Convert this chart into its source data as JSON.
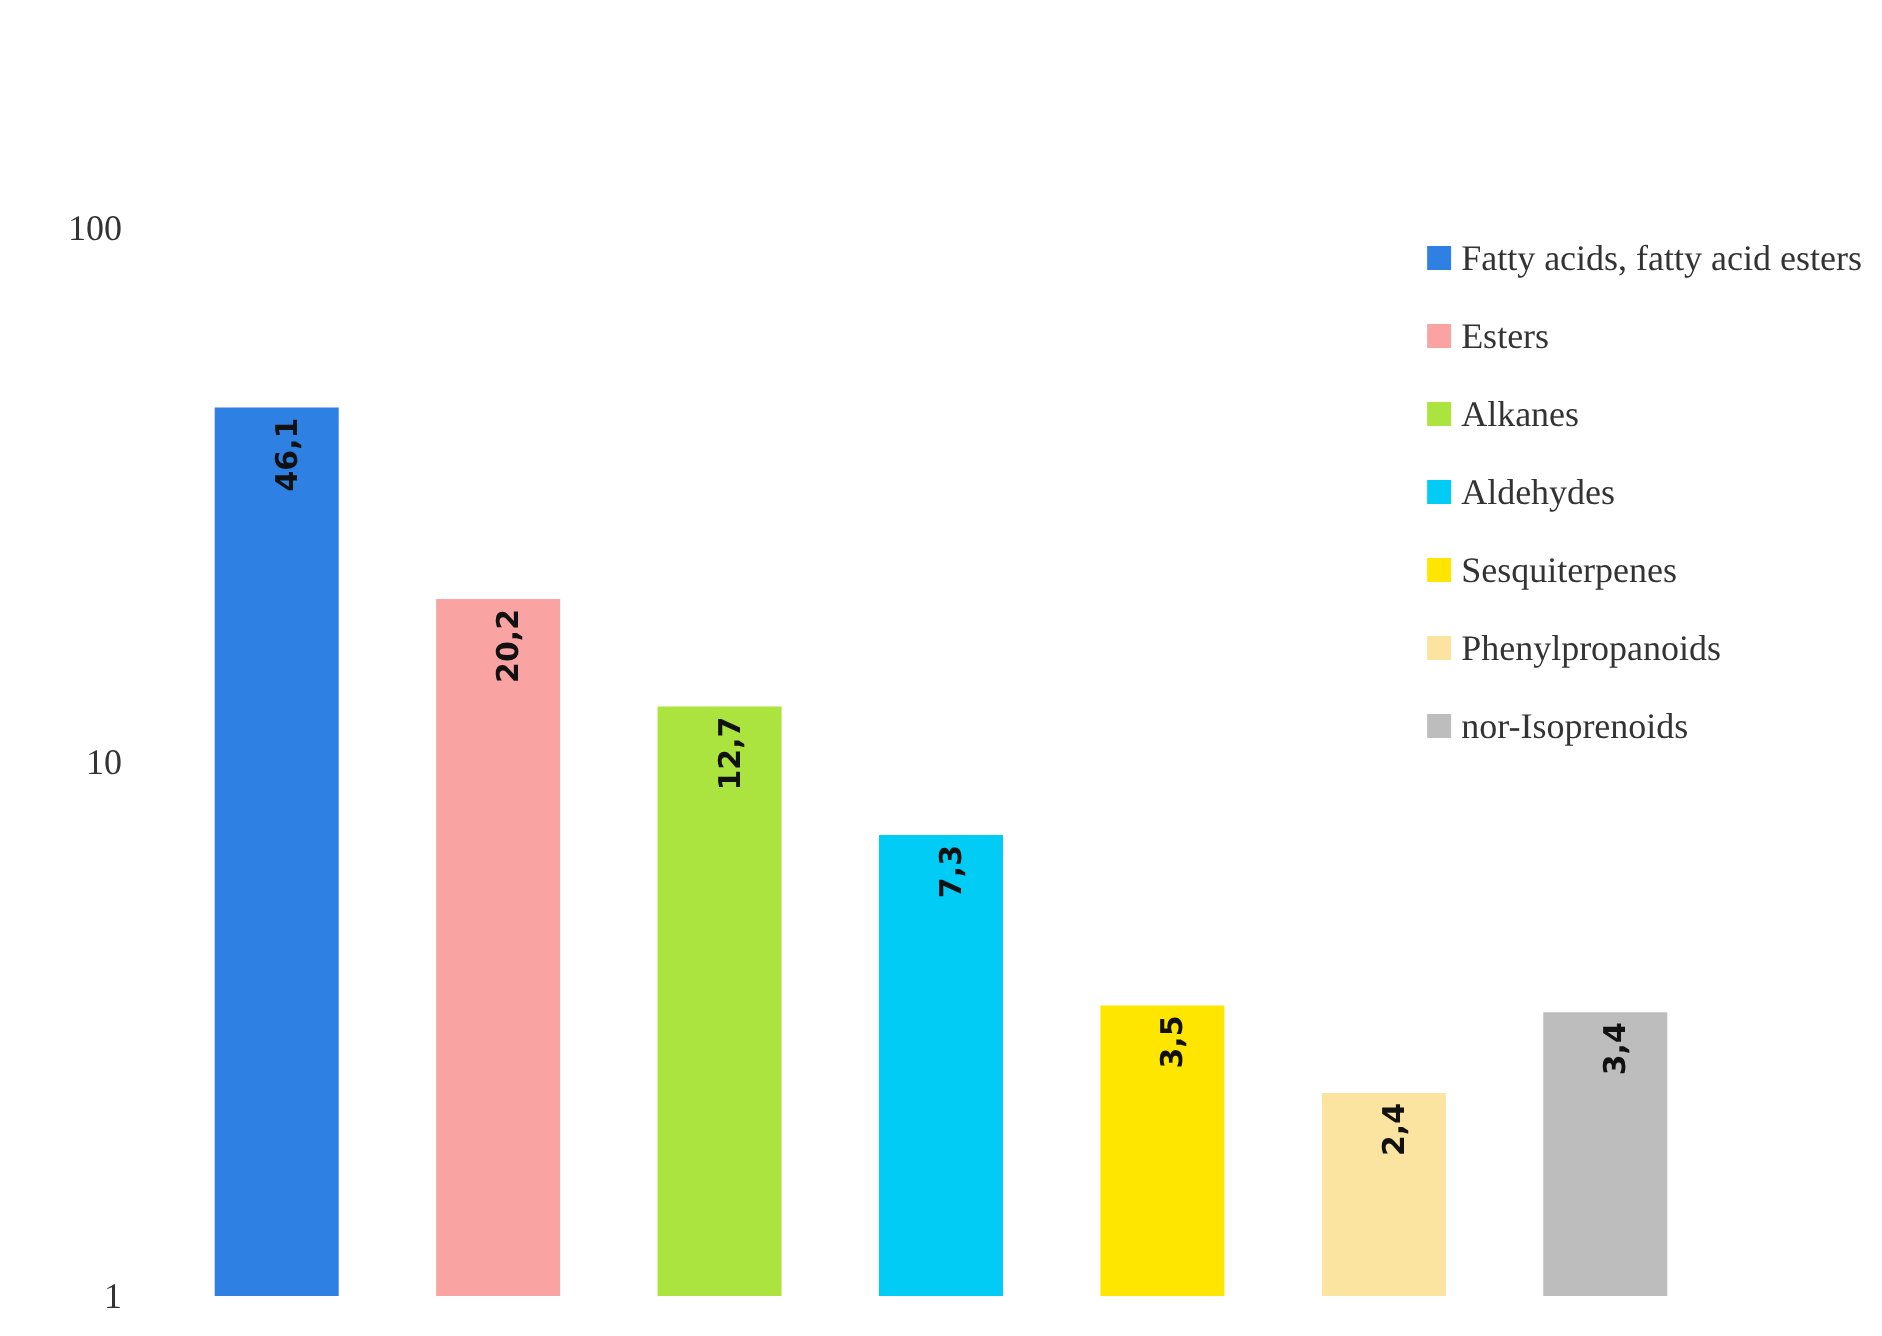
{
  "chart_data": {
    "type": "bar",
    "categories": [
      null,
      null,
      null,
      null,
      null,
      null,
      null
    ],
    "series": [
      {
        "name": "Fatty acids, fatty acid esters",
        "color": "#2f80e3",
        "values": [
          46.1,
          null,
          null,
          null,
          null,
          null,
          null
        ],
        "value_labels": [
          "46,1",
          null,
          null,
          null,
          null,
          null,
          null
        ]
      },
      {
        "name": "Esters",
        "color": "#f9a3a3",
        "values": [
          null,
          20.2,
          null,
          null,
          null,
          null,
          null
        ],
        "value_labels": [
          null,
          "20,2",
          null,
          null,
          null,
          null,
          null
        ]
      },
      {
        "name": "Alkanes",
        "color": "#abe33f",
        "values": [
          null,
          null,
          12.7,
          null,
          null,
          null,
          null
        ],
        "value_labels": [
          null,
          null,
          "12,7",
          null,
          null,
          null,
          null
        ]
      },
      {
        "name": "Aldehydes",
        "color": "#00ccf5",
        "values": [
          null,
          null,
          null,
          7.3,
          null,
          null,
          null
        ],
        "value_labels": [
          null,
          null,
          null,
          "7,3",
          null,
          null,
          null
        ]
      },
      {
        "name": "Sesquiterpenes",
        "color": "#ffe600",
        "values": [
          null,
          null,
          null,
          null,
          3.5,
          null,
          null
        ],
        "value_labels": [
          null,
          null,
          null,
          null,
          "3,5",
          null,
          null
        ]
      },
      {
        "name": "Phenylpropanoids",
        "color": "#fbe4a0",
        "values": [
          null,
          null,
          null,
          null,
          null,
          2.4,
          null
        ],
        "value_labels": [
          null,
          null,
          null,
          null,
          null,
          "2,4",
          null
        ]
      },
      {
        "name": "nor-Isoprenoids",
        "color": "#bdbdbd",
        "values": [
          null,
          null,
          null,
          null,
          null,
          null,
          3.4
        ],
        "value_labels": [
          null,
          null,
          null,
          null,
          null,
          null,
          "3,4"
        ]
      }
    ],
    "stacked": true,
    "log": true,
    "ylim": [
      1,
      100
    ],
    "yticks": [
      1,
      10,
      100
    ],
    "grid": false,
    "legend": "top right"
  }
}
